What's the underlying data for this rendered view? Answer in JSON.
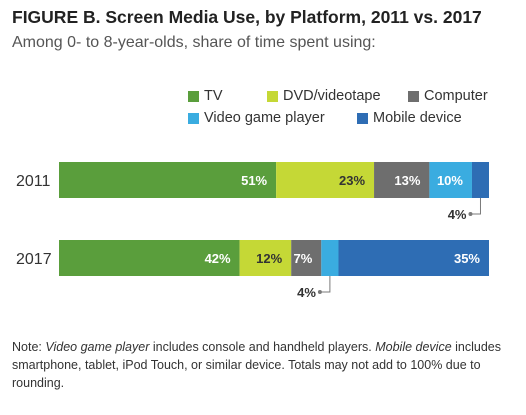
{
  "chart_data": {
    "type": "bar",
    "orientation": "horizontal",
    "stacked": true,
    "title": "FIGURE B. Screen Media Use, by Platform, 2011 vs. 2017",
    "subtitle": "Among 0- to 8-year-olds, share of time spent using:",
    "categories": [
      "2011",
      "2017"
    ],
    "series": [
      {
        "name": "TV",
        "values": [
          51,
          42
        ],
        "color": "#5a9e3c",
        "labels": [
          "51%",
          "42%"
        ]
      },
      {
        "name": "DVD/videotape",
        "values": [
          23,
          12
        ],
        "color": "#c5d836",
        "labels": [
          "23%",
          "12%"
        ]
      },
      {
        "name": "Computer",
        "values": [
          13,
          7
        ],
        "color": "#6e6e6e",
        "labels": [
          "13%",
          "7%"
        ]
      },
      {
        "name": "Video game player",
        "values": [
          10,
          4
        ],
        "color": "#3aace0",
        "labels": [
          "10%",
          "4%"
        ]
      },
      {
        "name": "Mobile device",
        "values": [
          4,
          35
        ],
        "color": "#2e6db4",
        "labels": [
          "4%",
          "35%"
        ]
      }
    ],
    "legend_position": "top-right",
    "grid": false
  },
  "note": {
    "prefix": "Note: ",
    "term1": "Video game player",
    "mid1": " includes console and handheld players. ",
    "term2": "Mobile device",
    "rest": " includes smartphone, tablet, iPod Touch, or similar device. Totals may not add to 100% due to rounding."
  }
}
